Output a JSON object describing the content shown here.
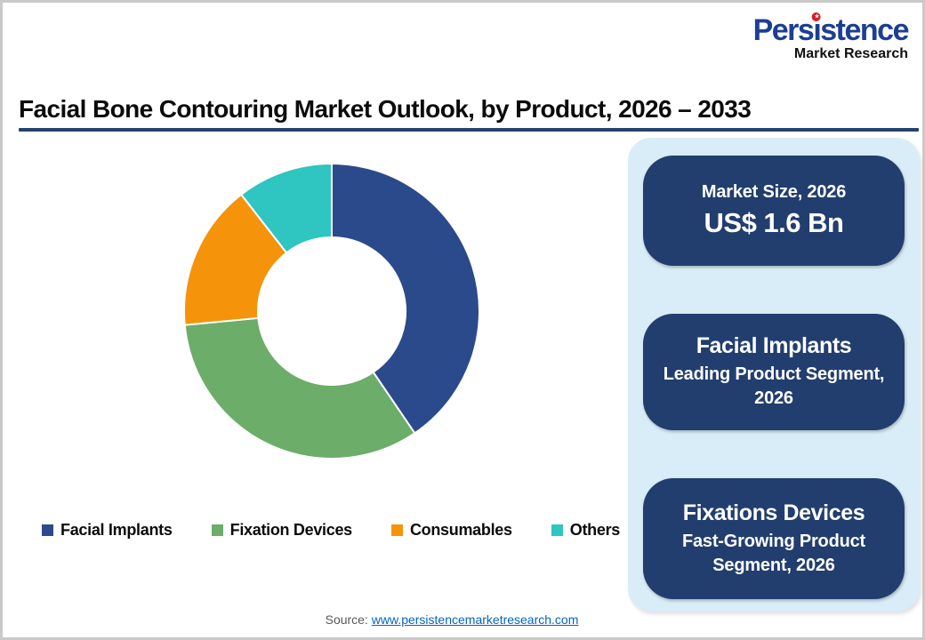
{
  "logo": {
    "brand": "Persistence",
    "subtitle": "Market Research"
  },
  "title": "Facial Bone Contouring Market Outlook, by Product, 2026 – 2033",
  "chart_data": {
    "type": "pie",
    "donut": true,
    "title": "Facial Bone Contouring Market Outlook, by Product, 2026 – 2033",
    "categories": [
      "Facial Implants",
      "Fixation Devices",
      "Consumables",
      "Others"
    ],
    "values": [
      40.5,
      33.0,
      16.0,
      10.5
    ],
    "colors": [
      "#2A4A8B",
      "#6BAD69",
      "#F5930B",
      "#2FC5C1"
    ],
    "start_angle_deg": 0,
    "direction": "clockwise",
    "inner_radius_ratio": 0.5,
    "legend_position": "bottom"
  },
  "panel": {
    "cards": [
      {
        "title": "Market Size, 2026",
        "value": "US$ 1.6 Bn"
      },
      {
        "title": "Facial Implants",
        "subtitle": "Leading Product Segment, 2026"
      },
      {
        "title": "Fixations Devices",
        "subtitle": "Fast-Growing Product Segment, 2026"
      }
    ]
  },
  "source": {
    "label": "Source:",
    "link_text": "www.persistencemarketresearch.com"
  },
  "colors": {
    "card_navy": "#223E6E",
    "panel_blue": "#D9EDF8",
    "underline_navy": "#24426F",
    "logo_blue": "#1C3E94",
    "logo_red": "#D22027",
    "link_blue": "#0563C1"
  }
}
